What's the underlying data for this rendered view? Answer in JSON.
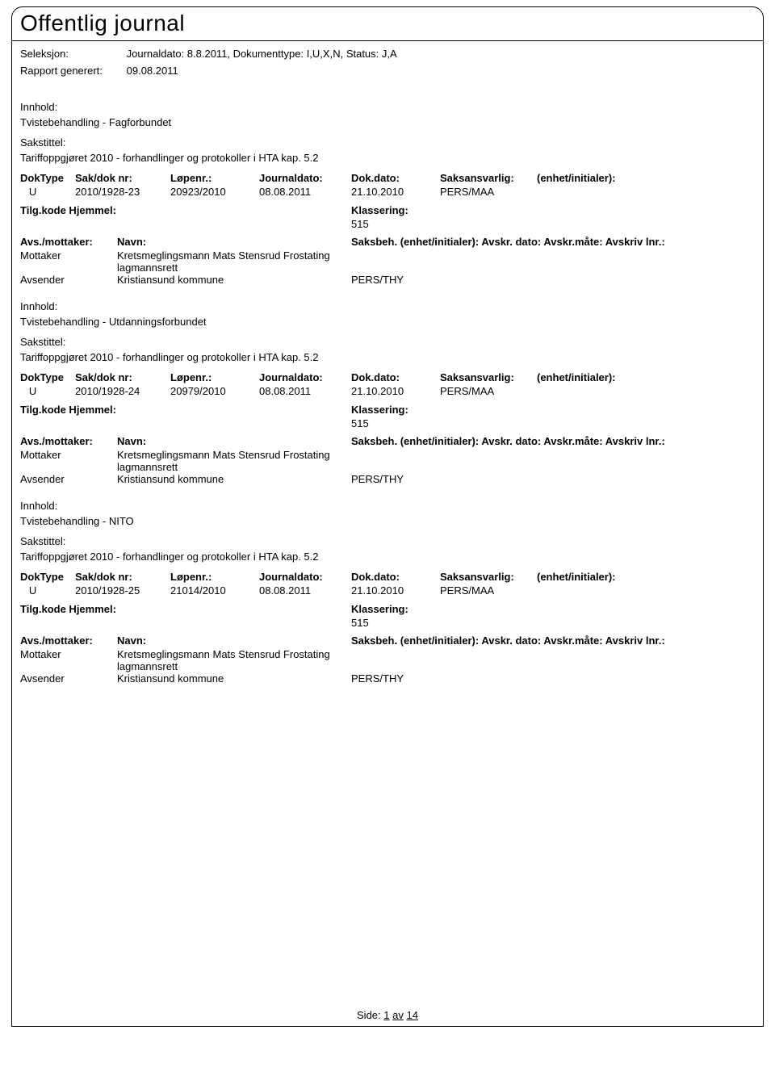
{
  "title": "Offentlig journal",
  "header": {
    "seleksjon_label": "Seleksjon:",
    "seleksjon_value": "Journaldato: 8.8.2011, Dokumenttype: I,U,X,N, Status: J,A",
    "rapport_label": "Rapport generert:",
    "rapport_value": "09.08.2011"
  },
  "labels": {
    "innhold": "Innhold:",
    "sakstittel": "Sakstittel:",
    "doktype": "DokType",
    "sakdok": "Sak/dok nr:",
    "lopenr": "Løpenr.:",
    "journaldato": "Journaldato:",
    "dokdato": "Dok.dato:",
    "saksansvarlig": "Saksansvarlig:",
    "enhet_initialer": "(enhet/initialer):",
    "tilgkode": "Tilg.kode",
    "hjemmel": "Hjemmel:",
    "klassering": "Klassering:",
    "avs_mottaker": "Avs./mottaker:",
    "navn": "Navn:",
    "saksbeh": "Saksbeh.",
    "avskr_dato": "Avskr. dato:",
    "avskr_mate": "Avskr.måte:",
    "avskriv_lnr": "Avskriv lnr.:"
  },
  "entries": [
    {
      "innhold": "Tvistebehandling - Fagforbundet",
      "sakstittel": "Tariffoppgjøret 2010 - forhandlinger og protokoller i HTA kap. 5.2",
      "doktype": "U",
      "sakdok": "2010/1928-23",
      "lopenr": "20923/2010",
      "journaldato": "08.08.2011",
      "dokdato": "21.10.2010",
      "saksansvarlig": "PERS/MAA",
      "klassering": "515",
      "parties": [
        {
          "role": "Mottaker",
          "name": "Kretsmeglingsmann Mats Stensrud Frostating lagmannsrett",
          "code": ""
        },
        {
          "role": "Avsender",
          "name": "Kristiansund kommune",
          "code": "PERS/THY"
        }
      ]
    },
    {
      "innhold": "Tvistebehandling - Utdanningsforbundet",
      "sakstittel": "Tariffoppgjøret 2010 - forhandlinger og protokoller i HTA kap. 5.2",
      "doktype": "U",
      "sakdok": "2010/1928-24",
      "lopenr": "20979/2010",
      "journaldato": "08.08.2011",
      "dokdato": "21.10.2010",
      "saksansvarlig": "PERS/MAA",
      "klassering": "515",
      "parties": [
        {
          "role": "Mottaker",
          "name": "Kretsmeglingsmann Mats Stensrud Frostating lagmannsrett",
          "code": ""
        },
        {
          "role": "Avsender",
          "name": "Kristiansund kommune",
          "code": "PERS/THY"
        }
      ]
    },
    {
      "innhold": "Tvistebehandling - NITO",
      "sakstittel": "Tariffoppgjøret 2010 - forhandlinger og protokoller i HTA kap. 5.2",
      "doktype": "U",
      "sakdok": "2010/1928-25",
      "lopenr": "21014/2010",
      "journaldato": "08.08.2011",
      "dokdato": "21.10.2010",
      "saksansvarlig": "PERS/MAA",
      "klassering": "515",
      "parties": [
        {
          "role": "Mottaker",
          "name": "Kretsmeglingsmann Mats Stensrud Frostating lagmannsrett",
          "code": ""
        },
        {
          "role": "Avsender",
          "name": "Kristiansund kommune",
          "code": "PERS/THY"
        }
      ]
    }
  ],
  "footer": {
    "side_label": "Side:",
    "page": "1",
    "av": "av",
    "total": "14"
  }
}
